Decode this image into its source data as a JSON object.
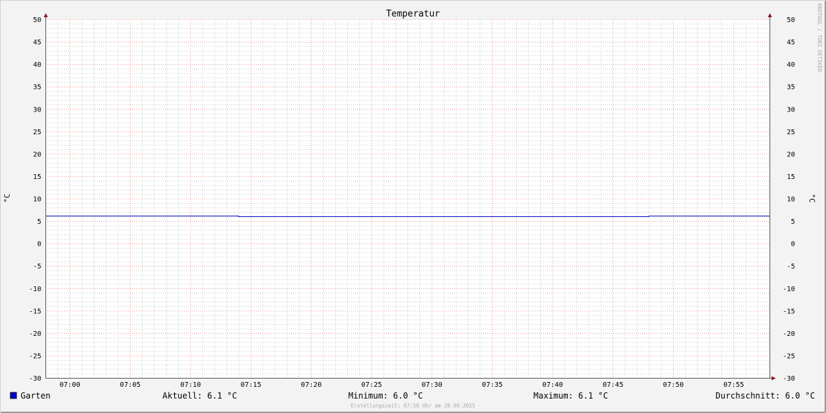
{
  "chart_data": {
    "type": "line",
    "title": "Temperatur",
    "ylabel": "°C",
    "ylabel_right": "°C",
    "ylim": [
      -30,
      50
    ],
    "yticks": [
      "50",
      "45",
      "40",
      "35",
      "30",
      "25",
      "20",
      "15",
      "10",
      "5",
      "0",
      "-5",
      "-10",
      "-15",
      "-20",
      "-25",
      "-30"
    ],
    "xlim": [
      "06:58",
      "07:58"
    ],
    "xticks": [
      "07:00",
      "07:05",
      "07:10",
      "07:15",
      "07:20",
      "07:25",
      "07:30",
      "07:35",
      "07:40",
      "07:45",
      "07:50",
      "07:55"
    ],
    "grid": true,
    "series": [
      {
        "name": "Garten",
        "color": "#0000cc",
        "points": [
          [
            "06:58",
            6.1
          ],
          [
            "07:14",
            6.1
          ],
          [
            "07:14",
            6.0
          ],
          [
            "07:48",
            6.0
          ],
          [
            "07:48",
            6.1
          ],
          [
            "07:58",
            6.1
          ]
        ]
      }
    ],
    "legend": {
      "name": "Garten",
      "aktuell": "Aktuell: 6.1 °C",
      "minimum": "Minimum: 6.0 °C",
      "maximum": "Maximum: 6.1 °C",
      "durchschnitt": "Durchschnitt: 6.0 °C"
    },
    "footer": "Erstellungszeit: 07:58 Uhr am 28.09.2025",
    "watermark": "RRDTOOL / TOBI OETIKER"
  }
}
